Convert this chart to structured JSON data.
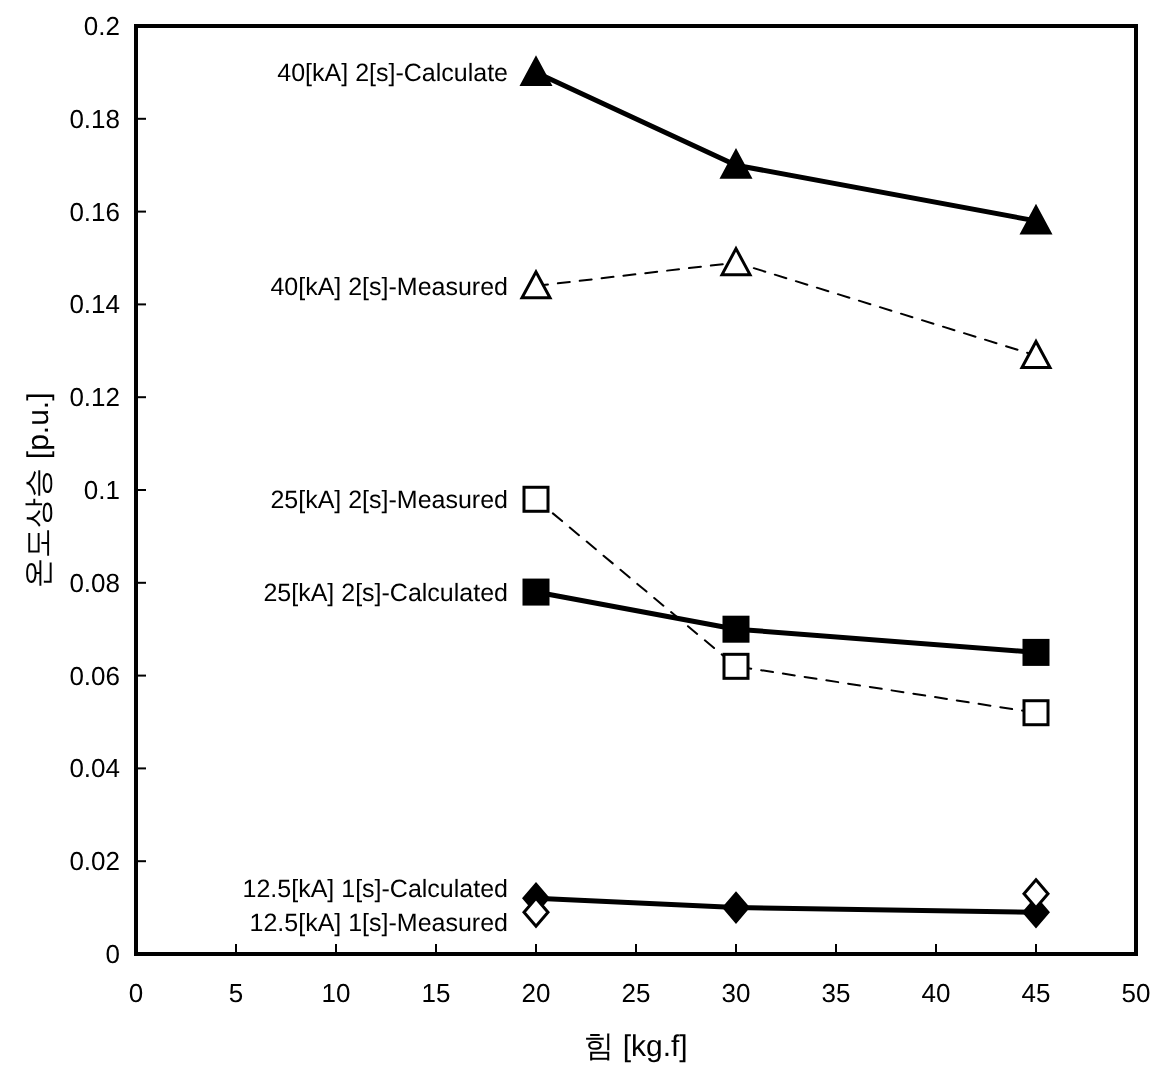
{
  "chart_data": {
    "type": "line",
    "xlabel": "힘 [kg.f]",
    "ylabel": "온도상승 [p.u.]",
    "x": [
      20,
      30,
      45
    ],
    "series": [
      {
        "name": "40[kA] 2[s]-Calculate",
        "color": "#000000",
        "values": [
          0.19,
          0.17,
          0.158
        ],
        "marker": "triangle",
        "line_style": "solid"
      },
      {
        "name": "40[kA] 2[s]-Measured",
        "color": "#000000",
        "values": [
          0.144,
          0.149,
          0.129
        ],
        "marker": "triangle",
        "line_style": "dashed"
      },
      {
        "name": "25[kA] 2[s]-Measured",
        "color": "#000000",
        "values": [
          0.098,
          0.062,
          0.052
        ],
        "marker": "square",
        "line_style": "dashed"
      },
      {
        "name": "25[kA] 2[s]-Calculated",
        "color": "#000000",
        "values": [
          0.078,
          0.07,
          0.065
        ],
        "marker": "square",
        "line_style": "solid"
      },
      {
        "name": "12.5[kA] 1[s]-Calculated",
        "color": "#000000",
        "values": [
          0.012,
          0.01,
          0.009
        ],
        "marker": "diamond",
        "line_style": "solid"
      },
      {
        "name": "12.5[kA] 1[s]-Measured",
        "color": "#000000",
        "values": [
          0.009,
          null,
          0.013
        ],
        "marker": "diamond",
        "line_style": "dashed"
      }
    ],
    "xlim": [
      0,
      50
    ],
    "xticks": [
      0,
      5,
      10,
      15,
      20,
      25,
      30,
      35,
      40,
      45,
      50
    ],
    "ylim": [
      0,
      0.2
    ],
    "yticks": [
      0,
      0.02,
      0.04,
      0.06,
      0.08,
      0.1,
      0.12,
      0.14,
      0.16,
      0.18,
      0.2
    ],
    "grid": false,
    "legend": false
  }
}
